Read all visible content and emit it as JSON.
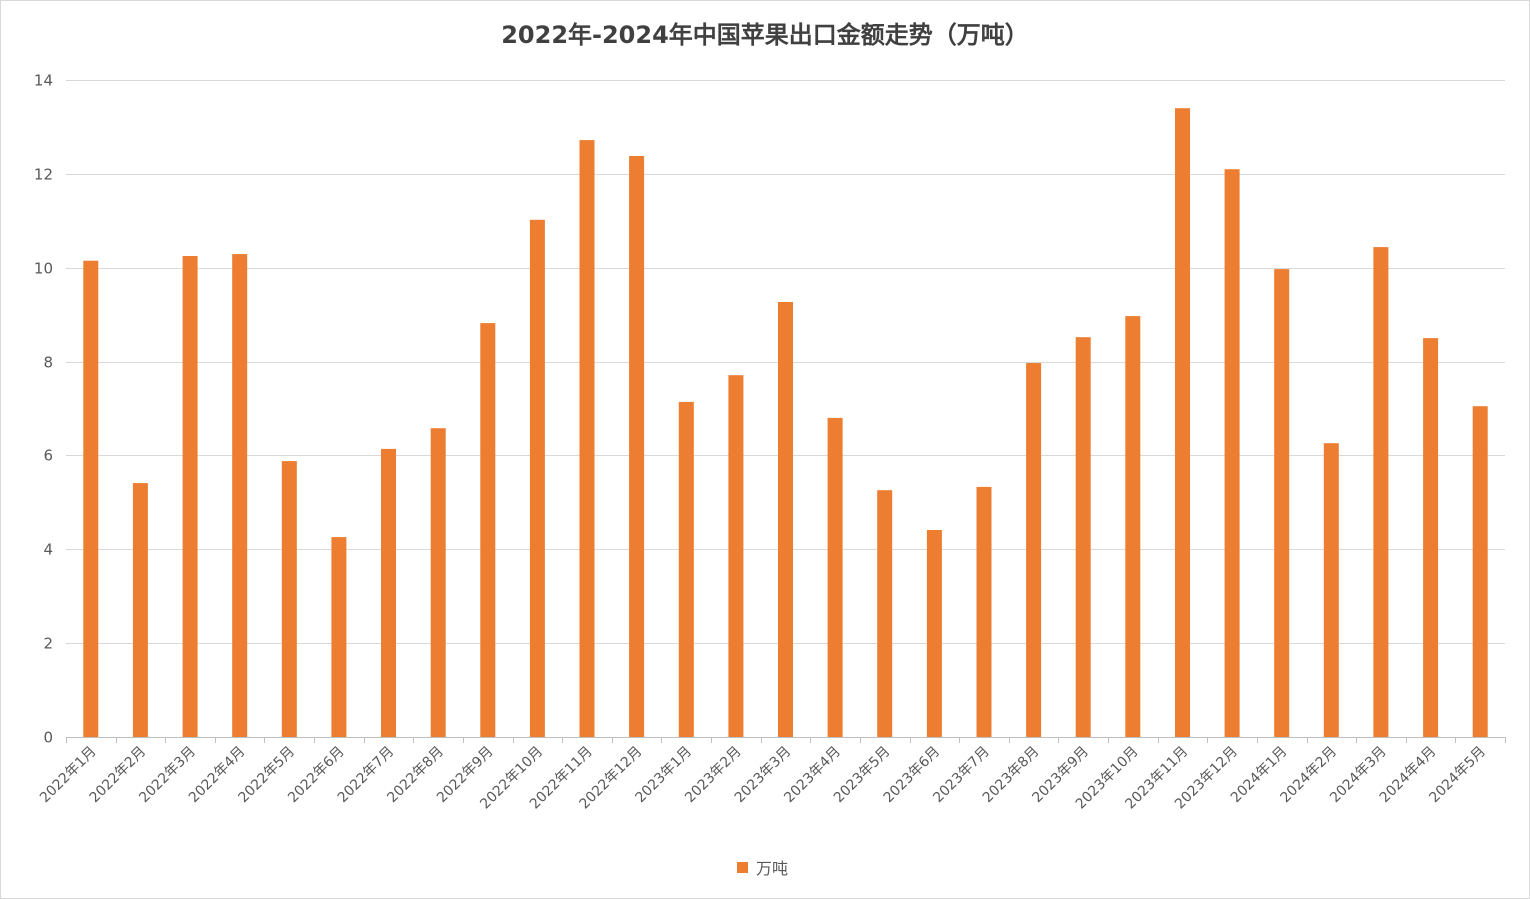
{
  "chart_data": {
    "type": "bar",
    "title": "2022年-2024年中国苹果出口金额走势（万吨）",
    "xlabel": "",
    "ylabel": "",
    "ylim": [
      0,
      14
    ],
    "yticks": [
      0,
      2,
      4,
      6,
      8,
      10,
      12,
      14
    ],
    "grid": true,
    "legend": "bottom",
    "bar_color": "#ED7D31",
    "categories": [
      "2022年1月",
      "2022年2月",
      "2022年3月",
      "2022年4月",
      "2022年5月",
      "2022年6月",
      "2022年7月",
      "2022年8月",
      "2022年9月",
      "2022年10月",
      "2022年11月",
      "2022年12月",
      "2023年1月",
      "2023年2月",
      "2023年3月",
      "2023年4月",
      "2023年5月",
      "2023年6月",
      "2023年7月",
      "2023年8月",
      "2023年9月",
      "2023年10月",
      "2023年11月",
      "2023年12月",
      "2024年1月",
      "2024年2月",
      "2024年3月",
      "2024年4月",
      "2024年5月"
    ],
    "series": [
      {
        "name": "万吨",
        "values": [
          10.15,
          5.41,
          10.25,
          10.29,
          5.88,
          4.26,
          6.14,
          6.58,
          8.82,
          11.02,
          12.72,
          12.38,
          7.14,
          7.71,
          9.27,
          6.8,
          5.26,
          4.41,
          5.33,
          7.97,
          8.52,
          8.97,
          13.4,
          12.1,
          9.97,
          6.26,
          10.44,
          8.5,
          7.05
        ]
      }
    ]
  }
}
